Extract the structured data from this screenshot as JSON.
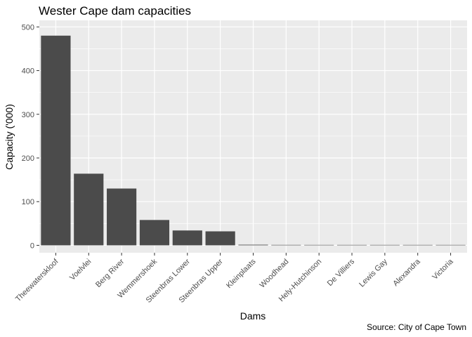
{
  "chart_data": {
    "type": "bar",
    "title": "Wester Cape dam capacities",
    "xlabel": "Dams",
    "ylabel": "Capacity ('000)",
    "caption": "Source: City of Cape Town",
    "categories": [
      "Theewaterskloof",
      "Voelvlei",
      "Berg River",
      "Wemmershoek",
      "Steenbras Lower",
      "Steenbras Upper",
      "Kleinplaats",
      "Woodhead",
      "Hely-Hutchinson",
      "De Villiers",
      "Lewis Gay",
      "Alexandra",
      "Victoria"
    ],
    "values": [
      480,
      164,
      130,
      58,
      34,
      32,
      1.4,
      1.0,
      0.9,
      0.2,
      0.2,
      0.1,
      0.1
    ],
    "ylim": [
      -17,
      515
    ],
    "yticks": [
      0,
      100,
      200,
      300,
      400,
      500
    ],
    "grid": true,
    "colors": {
      "bar": "#4b4b4b",
      "panel": "#ebebeb",
      "grid": "#ffffff"
    }
  }
}
